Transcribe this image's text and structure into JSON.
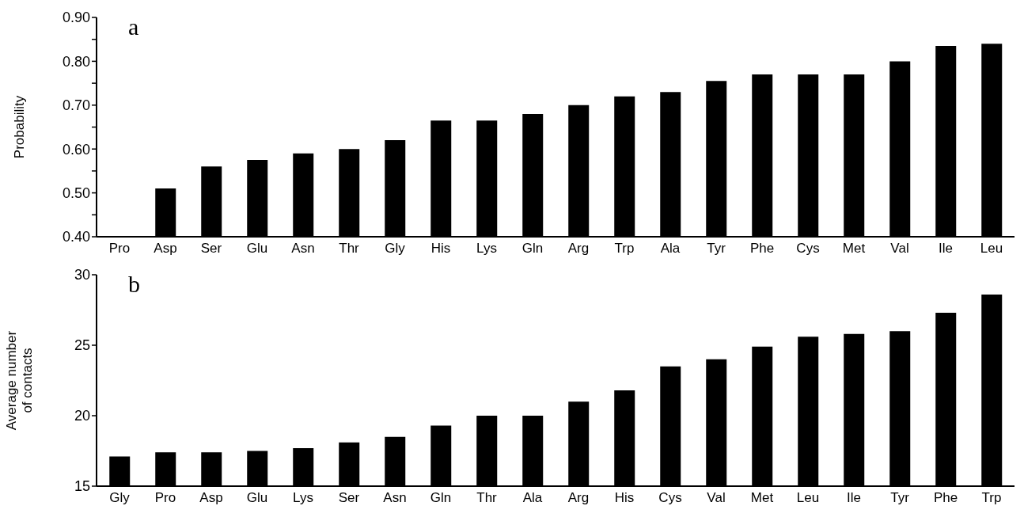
{
  "chart_data": [
    {
      "type": "bar",
      "ylabel": "Probability",
      "annotations": [
        "a"
      ],
      "color": "#000000",
      "categories": [
        "Pro",
        "Asp",
        "Ser",
        "Glu",
        "Asn",
        "Thr",
        "Gly",
        "His",
        "Lys",
        "Gln",
        "Arg",
        "Trp",
        "Ala",
        "Tyr",
        "Phe",
        "Cys",
        "Met",
        "Val",
        "Ile",
        "Leu"
      ],
      "values": [
        0.4,
        0.51,
        0.56,
        0.575,
        0.59,
        0.6,
        0.62,
        0.665,
        0.665,
        0.68,
        0.7,
        0.72,
        0.73,
        0.755,
        0.77,
        0.77,
        0.77,
        0.8,
        0.835,
        0.84
      ],
      "ylim": [
        0.4,
        0.9
      ],
      "yticks": [
        {
          "value": 0.4,
          "label": "0.40"
        },
        {
          "value": 0.45,
          "label": null
        },
        {
          "value": 0.5,
          "label": "0.50"
        },
        {
          "value": 0.55,
          "label": null
        },
        {
          "value": 0.6,
          "label": "0.60"
        },
        {
          "value": 0.65,
          "label": null
        },
        {
          "value": 0.7,
          "label": "0.70"
        },
        {
          "value": 0.75,
          "label": null
        },
        {
          "value": 0.8,
          "label": "0.80"
        },
        {
          "value": 0.85,
          "label": null
        },
        {
          "value": 0.9,
          "label": "0.90"
        }
      ],
      "grid": false
    },
    {
      "type": "bar",
      "ylabel": "Average number\nof contacts",
      "annotations": [
        "b"
      ],
      "color": "#000000",
      "categories": [
        "Gly",
        "Pro",
        "Asp",
        "Glu",
        "Lys",
        "Ser",
        "Asn",
        "Gln",
        "Thr",
        "Ala",
        "Arg",
        "His",
        "Cys",
        "Val",
        "Met",
        "Leu",
        "Ile",
        "Tyr",
        "Phe",
        "Trp"
      ],
      "values": [
        17.1,
        17.4,
        17.4,
        17.5,
        17.7,
        18.1,
        18.5,
        19.3,
        20.0,
        20.0,
        21.0,
        21.8,
        23.5,
        24.0,
        24.9,
        25.6,
        25.8,
        26.0,
        27.3,
        28.6
      ],
      "ylim": [
        15,
        30
      ],
      "yticks": [
        15,
        20,
        25,
        30
      ],
      "grid": false
    }
  ]
}
